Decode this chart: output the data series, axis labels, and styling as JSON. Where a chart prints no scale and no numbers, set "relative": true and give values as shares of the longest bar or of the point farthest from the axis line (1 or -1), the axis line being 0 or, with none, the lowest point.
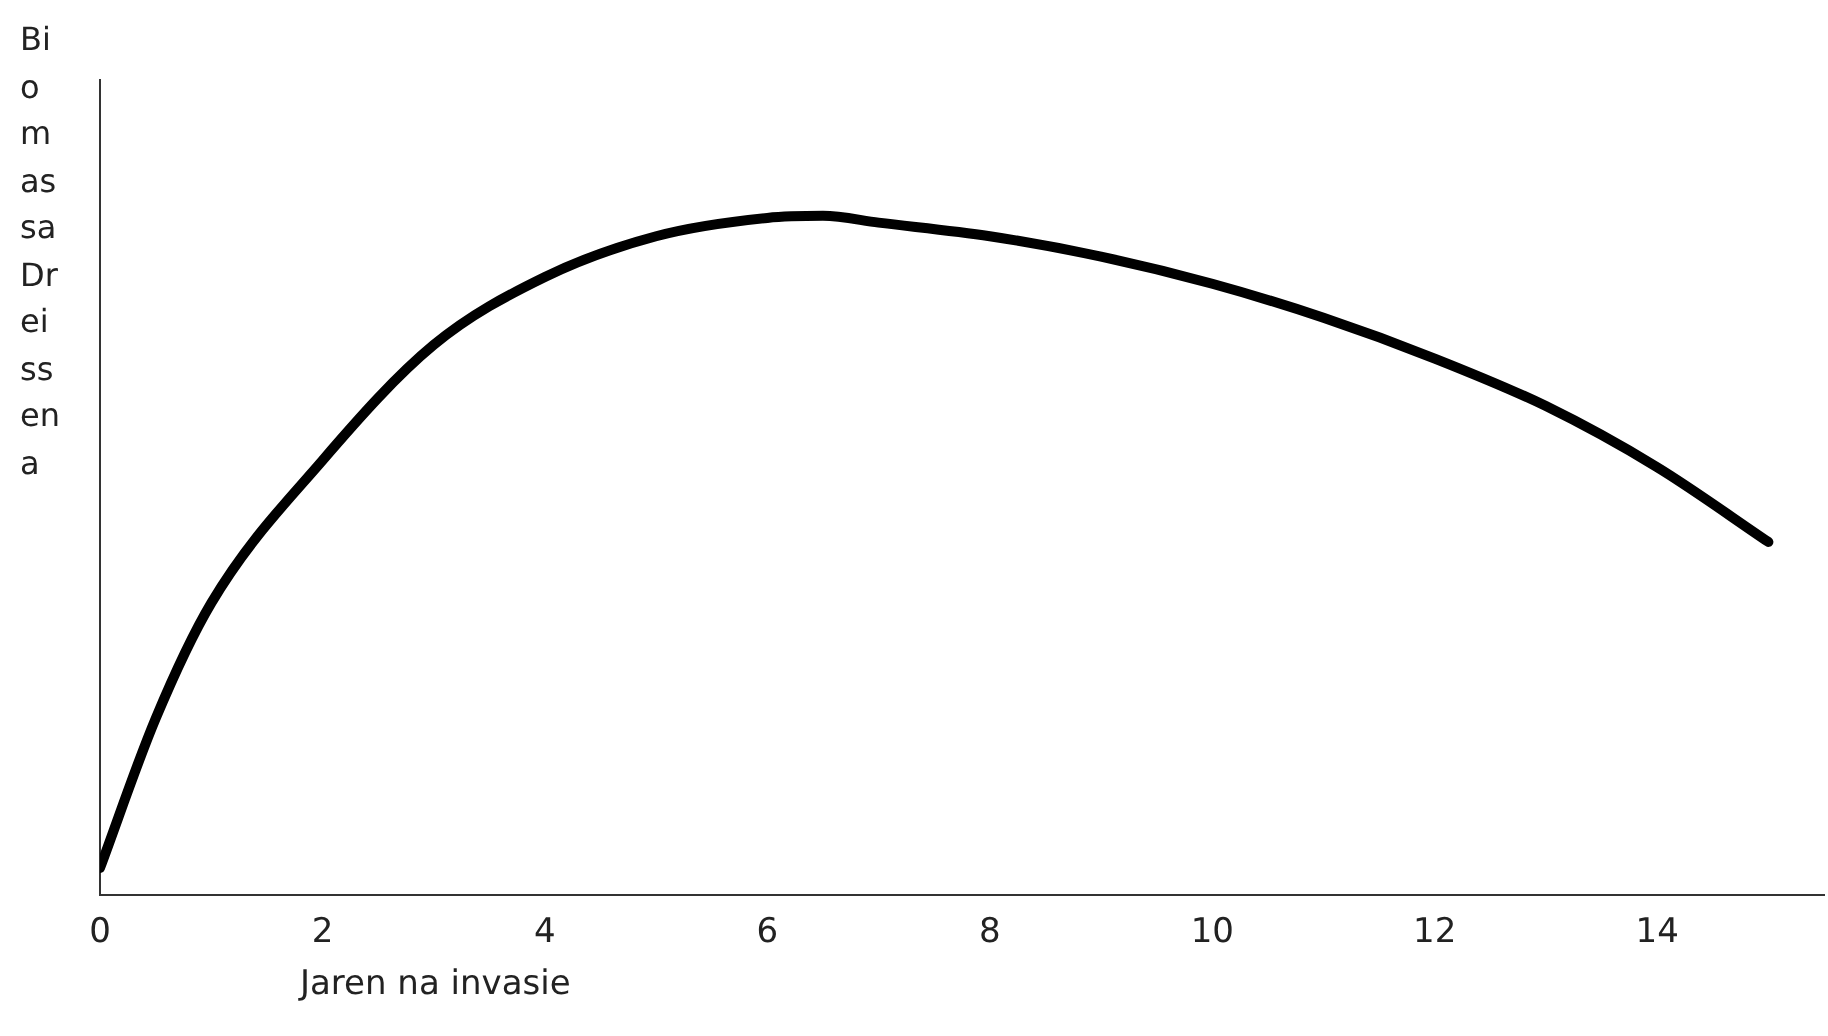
{
  "chart_data": {
    "type": "line",
    "relative": true,
    "xlabel": "Jaren na invasie",
    "ylabel": "Biomassa Dreissena",
    "x": [
      0,
      0.5,
      1,
      2,
      3,
      4,
      5,
      6,
      6.5,
      7,
      8,
      9,
      10,
      11,
      12,
      13,
      14,
      15
    ],
    "series": [
      {
        "color": "#000000",
        "values": [
          0.04,
          0.26,
          0.43,
          0.64,
          0.81,
          0.91,
          0.97,
          0.997,
          1,
          0.99,
          0.97,
          0.94,
          0.9,
          0.85,
          0.79,
          0.72,
          0.63,
          0.52
        ]
      }
    ],
    "xlim": [
      0,
      15.5
    ],
    "xticks": [
      0,
      2,
      4,
      6,
      8,
      10,
      12,
      14
    ],
    "grid": false,
    "legend": false,
    "marker": "none",
    "line_style": "solid"
  }
}
